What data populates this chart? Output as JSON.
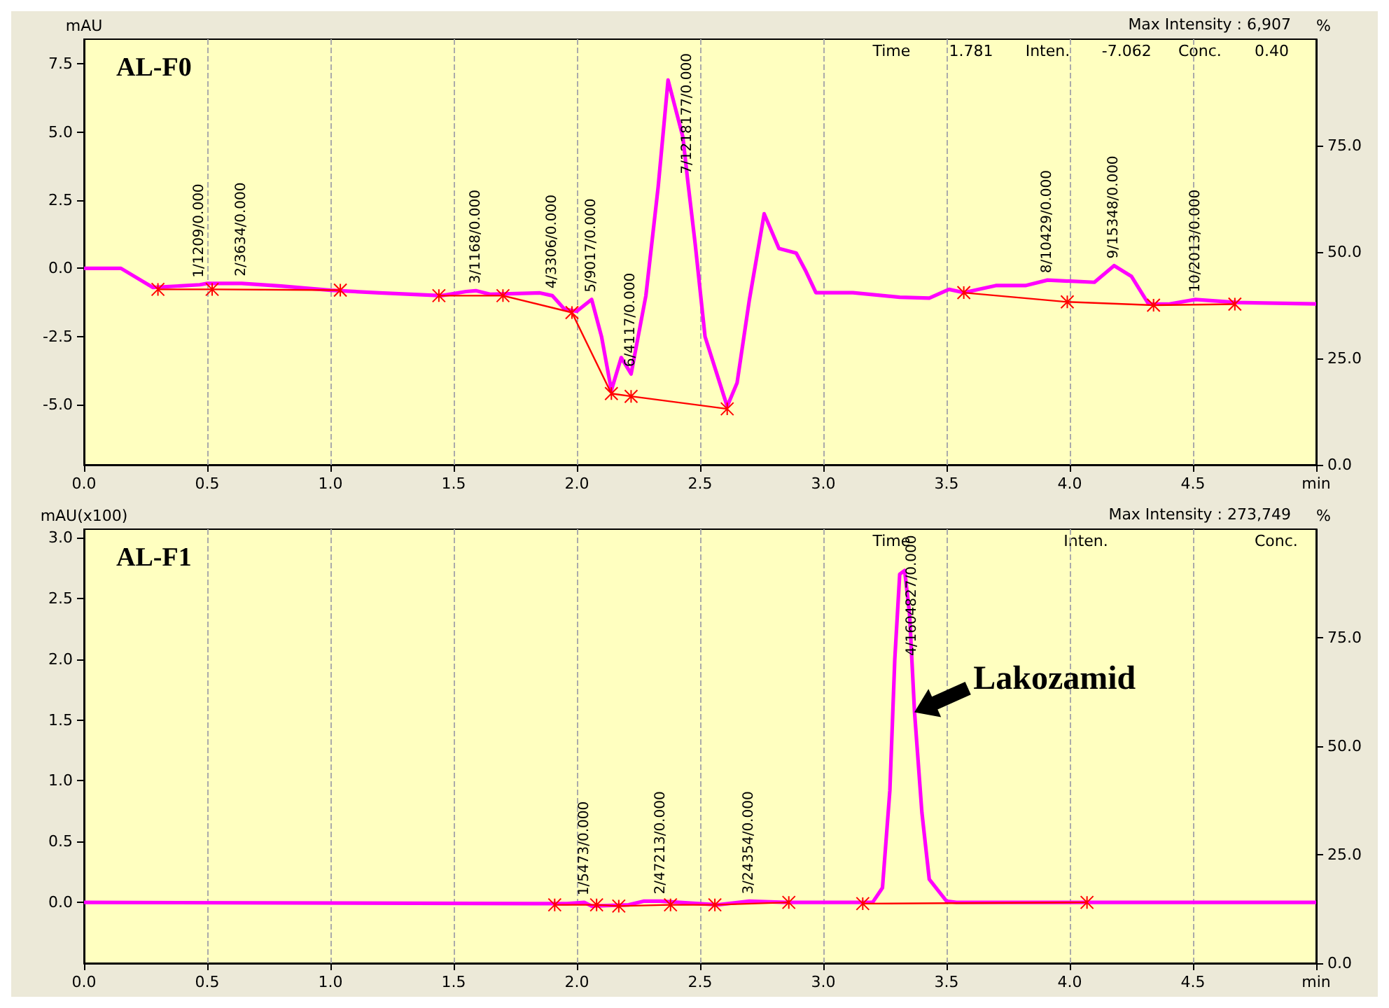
{
  "chart_data": [
    {
      "type": "line",
      "title": "AL-F0",
      "ylabel": "mAU",
      "y2label": "%",
      "xlim": [
        0,
        5
      ],
      "xticks": [
        {
          "value": 0,
          "label": "0.0"
        },
        {
          "value": 0.5,
          "label": "0.5"
        },
        {
          "value": 1,
          "label": "1.0"
        },
        {
          "value": 1.5,
          "label": "1.5"
        },
        {
          "value": 2,
          "label": "2.0"
        },
        {
          "value": 2.5,
          "label": "2.5"
        },
        {
          "value": 3,
          "label": "3.0"
        },
        {
          "value": 3.5,
          "label": "3.5"
        },
        {
          "value": 4,
          "label": "4.0"
        },
        {
          "value": 4.5,
          "label": "4.5"
        },
        {
          "value": 5,
          "label": "min"
        }
      ],
      "ylim": [
        -7.2,
        8.4
      ],
      "yticks": [
        {
          "value": -5,
          "label": "-5.0"
        },
        {
          "value": -2.5,
          "label": "-2.5"
        },
        {
          "value": 0,
          "label": "0.0"
        },
        {
          "value": 2.5,
          "label": "2.5"
        },
        {
          "value": 5,
          "label": "5.0"
        },
        {
          "value": 7.5,
          "label": "7.5"
        }
      ],
      "y2lim": [
        0,
        100
      ],
      "y2ticks": [
        {
          "value": 0,
          "label": "0.0"
        },
        {
          "value": 25,
          "label": "25.0"
        },
        {
          "value": 50,
          "label": "50.0"
        },
        {
          "value": 75,
          "label": "75.0"
        }
      ],
      "grid": "x",
      "series": [
        {
          "color": "#ff00ff",
          "x": [
            0,
            0.15,
            0.28,
            0.47,
            0.5,
            0.64,
            0.8,
            1.0,
            1.2,
            1.45,
            1.55,
            1.59,
            1.65,
            1.85,
            1.9,
            1.95,
            2.0,
            2.06,
            2.1,
            2.14,
            2.18,
            2.22,
            2.28,
            2.33,
            2.37,
            2.43,
            2.45,
            2.48,
            2.52,
            2.61,
            2.65,
            2.7,
            2.76,
            2.82,
            2.89,
            2.93,
            2.97,
            3.12,
            3.31,
            3.43,
            3.51,
            3.57,
            3.7,
            3.82,
            3.91,
            4.1,
            4.18,
            4.25,
            4.32,
            4.4,
            4.51,
            4.68,
            5.0
          ],
          "values": [
            0,
            0,
            -0.7,
            -0.6,
            -0.55,
            -0.55,
            -0.65,
            -0.8,
            -0.9,
            -1.0,
            -0.85,
            -0.82,
            -0.95,
            -0.9,
            -1.0,
            -1.5,
            -1.57,
            -1.14,
            -2.5,
            -4.47,
            -3.27,
            -3.87,
            -1.0,
            3.0,
            6.9,
            4.82,
            3.2,
            0.9,
            -2.5,
            -5.06,
            -4.2,
            -1.15,
            2.0,
            0.73,
            0.56,
            -0.12,
            -0.89,
            -0.89,
            -1.06,
            -1.09,
            -0.77,
            -0.89,
            -0.63,
            -0.63,
            -0.43,
            -0.51,
            0.1,
            -0.29,
            -1.31,
            -1.31,
            -1.14,
            -1.25,
            -1.3
          ],
          "value_labels": [
            null,
            null,
            null,
            "1/1209/0.000",
            null,
            "2/3634/0.000",
            null,
            null,
            null,
            null,
            null,
            "3/1168/0.000",
            null,
            null,
            "4/3306/0.000",
            null,
            null,
            "5/9017/0.000",
            null,
            null,
            null,
            "6/4117/0.000",
            null,
            null,
            null,
            null,
            "7/1218177/0.000",
            null,
            null,
            null,
            null,
            null,
            null,
            null,
            null,
            null,
            null,
            null,
            null,
            null,
            null,
            null,
            null,
            null,
            "8/10429/0.000",
            null,
            "9/15348/0.000",
            null,
            null,
            null,
            "10/2013/0.000",
            null,
            null
          ]
        },
        {
          "color": "#ff0000",
          "marker": "cross",
          "x": [
            0.3,
            0.52,
            1.04,
            1.2,
            1.44,
            1.7,
            1.98,
            2.14,
            2.22,
            2.61,
            3.0,
            3.57,
            3.99,
            4.34,
            4.67
          ],
          "values": [
            -0.77,
            -0.77,
            -0.8,
            null,
            -1.0,
            -1.0,
            -1.62,
            -4.59,
            -4.69,
            -5.15,
            null,
            -0.89,
            -1.23,
            -1.35,
            -1.31
          ]
        }
      ],
      "annotations": [
        "Max Intensity : 6,907",
        "Time",
        "1.781",
        "Inten.",
        "-7.062",
        "Conc.",
        "0.40"
      ]
    },
    {
      "type": "line",
      "title": "AL-F1",
      "ylabel": "mAU(x100)",
      "y2label": "%",
      "xlim": [
        0,
        5
      ],
      "xticks": [
        {
          "value": 0,
          "label": "0.0"
        },
        {
          "value": 0.5,
          "label": "0.5"
        },
        {
          "value": 1,
          "label": "1.0"
        },
        {
          "value": 1.5,
          "label": "1.5"
        },
        {
          "value": 2,
          "label": "2.0"
        },
        {
          "value": 2.5,
          "label": "2.5"
        },
        {
          "value": 3,
          "label": "3.0"
        },
        {
          "value": 3.5,
          "label": "3.5"
        },
        {
          "value": 4,
          "label": "4.0"
        },
        {
          "value": 4.5,
          "label": "4.5"
        },
        {
          "value": 5,
          "label": "min"
        }
      ],
      "ylim": [
        -0.5,
        3.07
      ],
      "yticks": [
        {
          "value": 0,
          "label": "0.0"
        },
        {
          "value": 0.5,
          "label": "0.5"
        },
        {
          "value": 1,
          "label": "1.0"
        },
        {
          "value": 1.5,
          "label": "1.5"
        },
        {
          "value": 2,
          "label": "2.0"
        },
        {
          "value": 2.5,
          "label": "2.5"
        },
        {
          "value": 3,
          "label": "3.0"
        }
      ],
      "y2lim": [
        0,
        100
      ],
      "y2ticks": [
        {
          "value": 0,
          "label": "0.0"
        },
        {
          "value": 25,
          "label": "25.0"
        },
        {
          "value": 50,
          "label": "50.0"
        },
        {
          "value": 75,
          "label": "75.0"
        }
      ],
      "grid": "x",
      "series": [
        {
          "color": "#ff00ff",
          "x": [
            0,
            1.96,
            2.03,
            2.06,
            2.21,
            2.27,
            2.34,
            2.57,
            2.7,
            2.85,
            3.2,
            3.24,
            3.27,
            3.29,
            3.31,
            3.33,
            3.35,
            3.36,
            3.37,
            3.4,
            3.43,
            3.5,
            3.54,
            5.0
          ],
          "values": [
            0,
            -0.01,
            0,
            -0.03,
            -0.02,
            0.01,
            0.01,
            -0.02,
            0.01,
            0,
            0,
            0.12,
            0.92,
            2.0,
            2.7,
            2.73,
            2.37,
            1.97,
            1.57,
            0.74,
            0.19,
            0.01,
            0,
            0
          ],
          "value_labels": [
            null,
            null,
            "1/5473/0.000",
            null,
            null,
            null,
            "2/47213/0.000",
            null,
            "3/24354/0.000",
            null,
            null,
            null,
            null,
            null,
            null,
            null,
            null,
            "4/1604827/0.000",
            null,
            null,
            null,
            null,
            null,
            null
          ]
        },
        {
          "color": "#ff0000",
          "marker": "cross",
          "x": [
            1.91,
            2.08,
            2.17,
            2.38,
            2.56,
            2.86,
            3.0,
            3.16,
            4.07
          ],
          "values": [
            -0.02,
            -0.02,
            -0.03,
            -0.02,
            -0.02,
            0,
            null,
            -0.01,
            0
          ]
        }
      ],
      "annotations": [
        "Max Intensity : 273,749",
        "Time",
        "Inten.",
        "Conc.",
        {
          "text": "Lakozamid",
          "x": 3.37,
          "y": 1.57
        }
      ]
    }
  ]
}
